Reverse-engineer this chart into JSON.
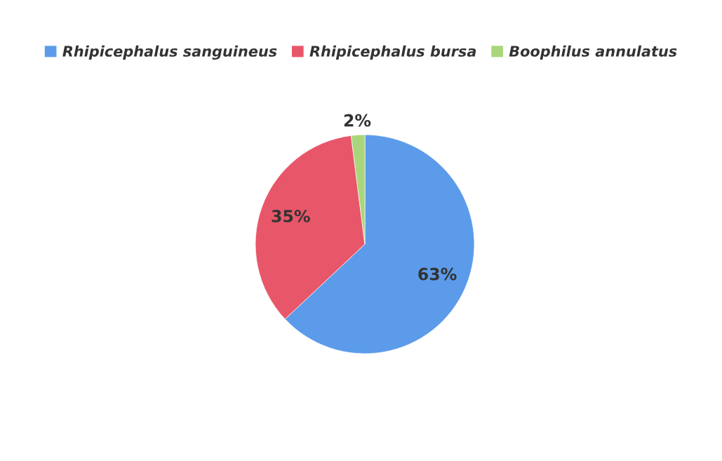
{
  "chart_data": {
    "type": "pie",
    "categories": [
      "Rhipicephalus sanguineus",
      "Rhipicephalus bursa",
      "Boophilus annulatus"
    ],
    "values": [
      63,
      35,
      2
    ],
    "colors": [
      "#5b9bea",
      "#e8566a",
      "#a9d67a"
    ],
    "value_labels": [
      "63%",
      "35%",
      "2%"
    ],
    "legend": "top"
  }
}
